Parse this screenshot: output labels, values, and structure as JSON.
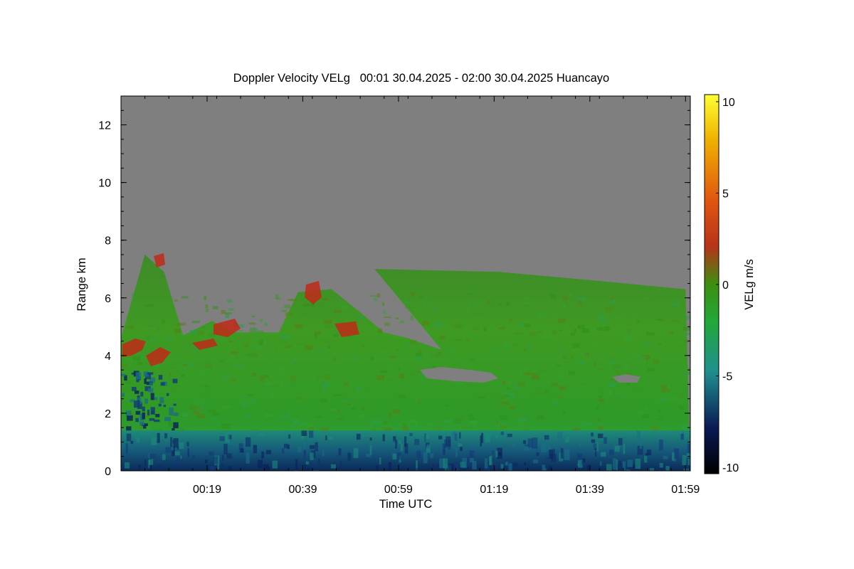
{
  "chart_data": {
    "type": "heatmap",
    "title": "Doppler Velocity VELg   00:01 30.04.2025 - 02:00 30.04.2025 Huancayo",
    "xlabel": "Time UTC",
    "ylabel": "Range km",
    "colorbar_label": "VELg m/s",
    "x_range": [
      "00:01",
      "02:00"
    ],
    "ylim": [
      0,
      13
    ],
    "color_range": [
      -10,
      10
    ],
    "x_ticks": [
      "00:19",
      "00:39",
      "00:59",
      "01:19",
      "01:39",
      "01:59"
    ],
    "y_ticks": [
      0,
      2,
      4,
      6,
      8,
      10,
      12
    ],
    "colorbar_ticks": [
      10,
      5,
      0,
      -5,
      -10
    ],
    "colormap": [
      "#000000",
      "#0a1a55",
      "#1f8f8f",
      "#22a83a",
      "#3d8f10",
      "#b8331a",
      "#e05510",
      "#f0b000",
      "#ffff33"
    ],
    "no_data_color": "#7f7f7f",
    "echo_top_km": [
      {
        "time": "00:01",
        "top": 4.6
      },
      {
        "time": "00:06",
        "top": 7.5
      },
      {
        "time": "00:10",
        "top": 6.9
      },
      {
        "time": "00:14",
        "top": 4.7
      },
      {
        "time": "00:20",
        "top": 5.2
      },
      {
        "time": "00:25",
        "top": 4.8
      },
      {
        "time": "00:34",
        "top": 4.8
      },
      {
        "time": "00:38",
        "top": 6.2
      },
      {
        "time": "00:45",
        "top": 6.3
      },
      {
        "time": "00:51",
        "top": 5.5
      },
      {
        "time": "00:56",
        "top": 4.8
      },
      {
        "time": "01:01",
        "top": 4.6
      },
      {
        "time": "01:08",
        "top": 4.2
      },
      {
        "time": "00:54",
        "top": 7.0
      },
      {
        "time": "01:20",
        "top": 6.9
      },
      {
        "time": "01:40",
        "top": 6.6
      },
      {
        "time": "01:59",
        "top": 6.3
      }
    ],
    "low_layer_top_km": 1.4
  }
}
